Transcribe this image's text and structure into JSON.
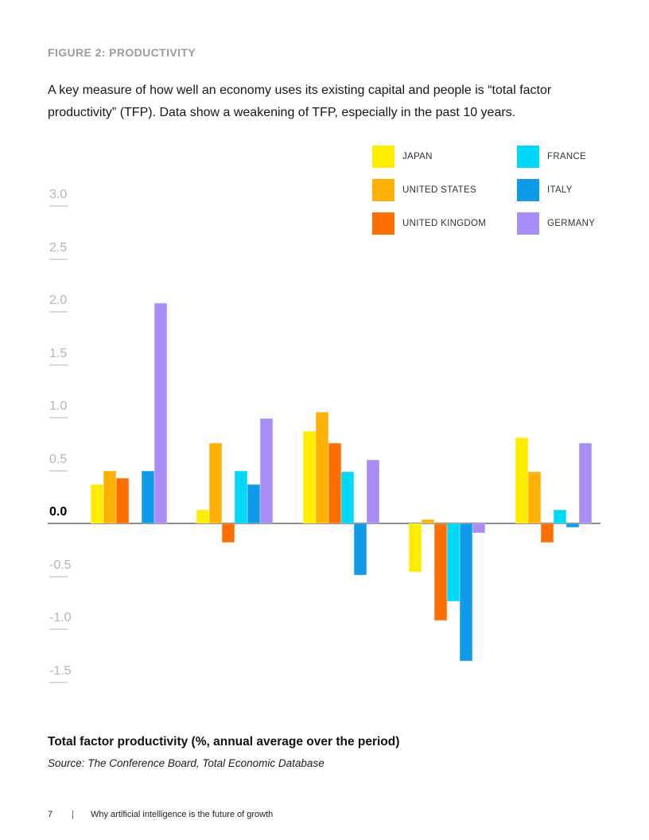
{
  "header": {
    "figure_label": "FIGURE 2: PRODUCTIVITY",
    "description": "A key measure of how well an economy uses its existing capital and people is “total factor productivity” (TFP). Data show a weakening of TFP, especially in the past 10 years."
  },
  "chart_data": {
    "type": "bar",
    "title": "FIGURE 2: PRODUCTIVITY",
    "xlabel": "",
    "ylabel": "Total factor productivity (%, annual average over the period)",
    "ylim": [
      -1.5,
      3.0
    ],
    "grid": false,
    "legend_position": "top-right",
    "ytick_values": [
      3.0,
      2.5,
      2.0,
      1.5,
      1.0,
      0.5,
      0.0,
      -0.5,
      -1.0,
      -1.5
    ],
    "ytick_labels": [
      "3.0",
      "2.5",
      "2.0",
      "1.5",
      "1.0",
      "0.5",
      "0.0",
      "-0.5",
      "-1.0",
      "-1.5"
    ],
    "categories": [
      "",
      "",
      "",
      "",
      ""
    ],
    "series": [
      {
        "name": "JAPAN",
        "color": "#FFED00",
        "values": [
          0.37,
          0.13,
          0.87,
          -0.46,
          0.81
        ]
      },
      {
        "name": "UNITED STATES",
        "color": "#FFB005",
        "values": [
          0.5,
          0.76,
          1.05,
          0.04,
          0.49
        ]
      },
      {
        "name": "UNITED KINGDOM",
        "color": "#FF6E00",
        "values": [
          0.43,
          -0.18,
          0.76,
          -0.92,
          -0.18
        ]
      },
      {
        "name": "FRANCE",
        "color": "#00D8F8",
        "values": [
          0,
          0.5,
          0.49,
          -0.74,
          0.13
        ]
      },
      {
        "name": "ITALY",
        "color": "#0F9AEA",
        "values": [
          0.5,
          0.37,
          -0.49,
          -1.3,
          -0.04
        ]
      },
      {
        "name": "GERMANY",
        "color": "#A98CF5",
        "values": [
          2.08,
          0.99,
          0.6,
          -0.09,
          0.76
        ]
      }
    ],
    "legend_columns": [
      [
        "JAPAN",
        "UNITED STATES",
        "UNITED KINGDOM"
      ],
      [
        "FRANCE",
        "ITALY",
        "GERMANY"
      ]
    ]
  },
  "footer": {
    "caption": "Total factor productivity (%, annual average over the period)",
    "source": "Source: The Conference Board, Total Economic Database",
    "page_number": "7",
    "separator": "|",
    "report_title": "Why artificial intelligence is the future of growth"
  }
}
